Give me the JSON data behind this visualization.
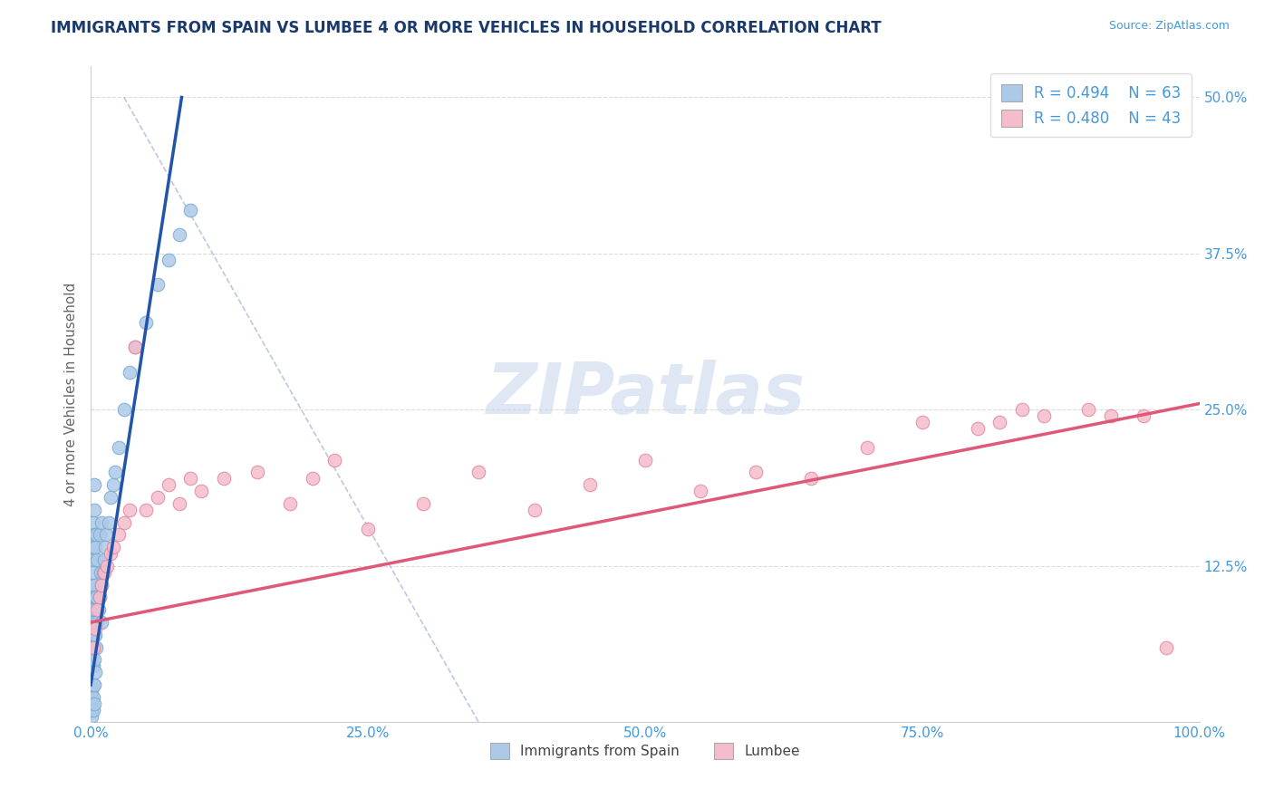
{
  "title": "IMMIGRANTS FROM SPAIN VS LUMBEE 4 OR MORE VEHICLES IN HOUSEHOLD CORRELATION CHART",
  "source": "Source: ZipAtlas.com",
  "xlabel": "",
  "ylabel": "4 or more Vehicles in Household",
  "xlim": [
    0,
    1.0
  ],
  "ylim": [
    0,
    0.525
  ],
  "xticks": [
    0.0,
    0.25,
    0.5,
    0.75,
    1.0
  ],
  "xtick_labels": [
    "0.0%",
    "25.0%",
    "50.0%",
    "75.0%",
    "100.0%"
  ],
  "yticks": [
    0.0,
    0.125,
    0.25,
    0.375,
    0.5
  ],
  "ytick_labels": [
    "",
    "12.5%",
    "25.0%",
    "37.5%",
    "50.0%"
  ],
  "legend_r1": "R = 0.494",
  "legend_n1": "N = 63",
  "legend_r2": "R = 0.480",
  "legend_n2": "N = 43",
  "series1_label": "Immigrants from Spain",
  "series2_label": "Lumbee",
  "series1_color": "#adc9e8",
  "series1_edge": "#7aaad0",
  "series2_color": "#f5bccb",
  "series2_edge": "#e088a0",
  "trendline1_color": "#2255aa",
  "trendline2_color": "#e05878",
  "watermark": "ZIPatlas",
  "watermark_color": "#dde8f5",
  "background_color": "#ffffff",
  "title_color": "#1a3a6b",
  "source_color": "#4499dd",
  "axis_label_color": "#666666",
  "tick_label_color": "#4499dd",
  "grid_color": "#cccccc",
  "series1_x": [
    0.001,
    0.001,
    0.001,
    0.001,
    0.001,
    0.001,
    0.001,
    0.001,
    0.001,
    0.001,
    0.002,
    0.002,
    0.002,
    0.002,
    0.002,
    0.002,
    0.002,
    0.002,
    0.002,
    0.002,
    0.003,
    0.003,
    0.003,
    0.003,
    0.003,
    0.003,
    0.003,
    0.003,
    0.003,
    0.003,
    0.004,
    0.004,
    0.004,
    0.004,
    0.005,
    0.005,
    0.005,
    0.006,
    0.006,
    0.007,
    0.008,
    0.008,
    0.009,
    0.01,
    0.01,
    0.012,
    0.014,
    0.016,
    0.018,
    0.02,
    0.022,
    0.025,
    0.03,
    0.035,
    0.04,
    0.05,
    0.06,
    0.07,
    0.08,
    0.09,
    0.01,
    0.011,
    0.013
  ],
  "series1_y": [
    0.005,
    0.01,
    0.015,
    0.02,
    0.025,
    0.03,
    0.05,
    0.07,
    0.09,
    0.11,
    0.01,
    0.02,
    0.03,
    0.045,
    0.06,
    0.08,
    0.1,
    0.12,
    0.14,
    0.16,
    0.015,
    0.03,
    0.05,
    0.07,
    0.09,
    0.11,
    0.13,
    0.15,
    0.17,
    0.19,
    0.04,
    0.07,
    0.1,
    0.14,
    0.06,
    0.1,
    0.15,
    0.08,
    0.13,
    0.09,
    0.1,
    0.15,
    0.12,
    0.11,
    0.16,
    0.13,
    0.15,
    0.16,
    0.18,
    0.19,
    0.2,
    0.22,
    0.25,
    0.28,
    0.3,
    0.32,
    0.35,
    0.37,
    0.39,
    0.41,
    0.08,
    0.12,
    0.14
  ],
  "series2_x": [
    0.002,
    0.004,
    0.006,
    0.008,
    0.01,
    0.012,
    0.015,
    0.018,
    0.02,
    0.025,
    0.03,
    0.035,
    0.04,
    0.05,
    0.06,
    0.07,
    0.08,
    0.09,
    0.1,
    0.12,
    0.15,
    0.18,
    0.2,
    0.22,
    0.25,
    0.3,
    0.35,
    0.4,
    0.45,
    0.5,
    0.55,
    0.6,
    0.65,
    0.7,
    0.75,
    0.8,
    0.82,
    0.84,
    0.86,
    0.9,
    0.92,
    0.95,
    0.97
  ],
  "series2_y": [
    0.06,
    0.075,
    0.09,
    0.1,
    0.11,
    0.12,
    0.125,
    0.135,
    0.14,
    0.15,
    0.16,
    0.17,
    0.3,
    0.17,
    0.18,
    0.19,
    0.175,
    0.195,
    0.185,
    0.195,
    0.2,
    0.175,
    0.195,
    0.21,
    0.155,
    0.175,
    0.2,
    0.17,
    0.19,
    0.21,
    0.185,
    0.2,
    0.195,
    0.22,
    0.24,
    0.235,
    0.24,
    0.25,
    0.245,
    0.25,
    0.245,
    0.245,
    0.06
  ],
  "trendline1_x": [
    0.0,
    0.082
  ],
  "trendline1_y": [
    0.03,
    0.5
  ],
  "trendline2_x": [
    0.0,
    1.0
  ],
  "trendline2_y": [
    0.08,
    0.255
  ],
  "dashed_line_x": [
    0.03,
    0.35
  ],
  "dashed_line_y": [
    0.5,
    0.0
  ]
}
